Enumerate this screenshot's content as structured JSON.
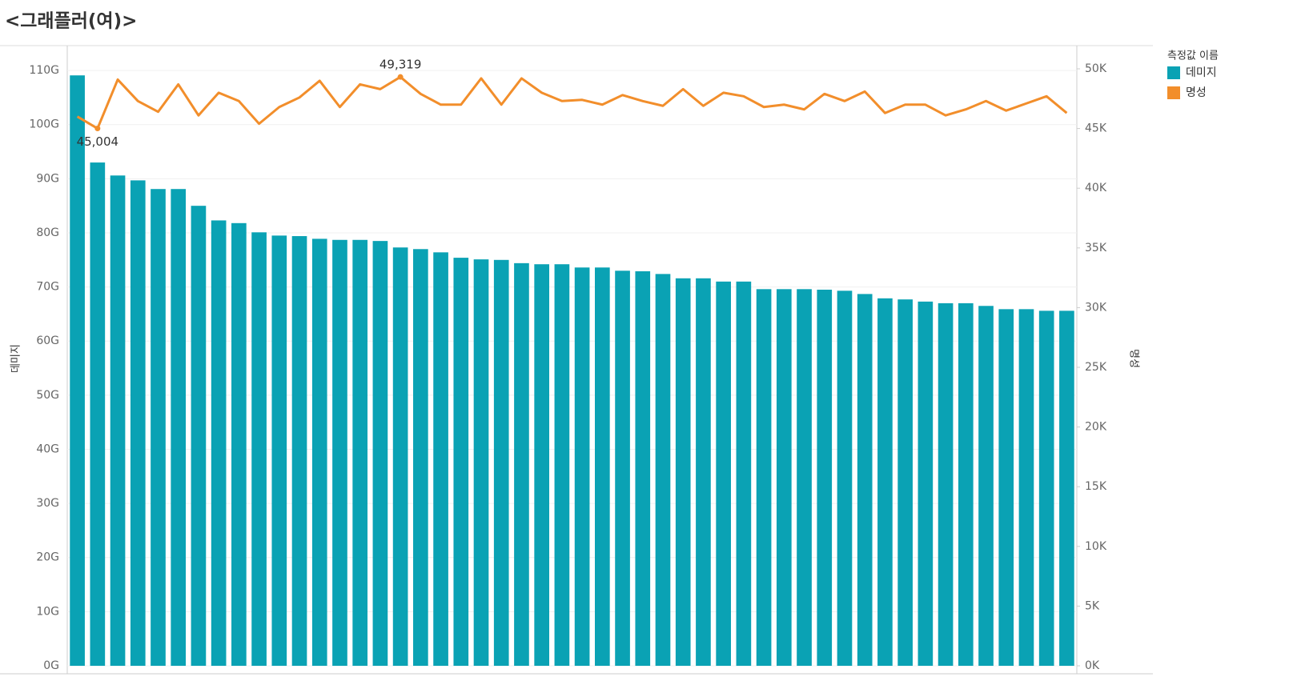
{
  "chart_data": {
    "type": "combo",
    "title": "<그래플러(여)>",
    "ylabel": "데미지",
    "y2label": "명성",
    "legend_title": "측정값 이름",
    "legend": "right",
    "grid": true,
    "categories": [
      null,
      null,
      null,
      null,
      null,
      null,
      null,
      null,
      null,
      null,
      null,
      null,
      null,
      null,
      null,
      null,
      null,
      null,
      null,
      null,
      null,
      null,
      null,
      null,
      null,
      null,
      null,
      null,
      null,
      null,
      null,
      null,
      null,
      null,
      null,
      null,
      null,
      null,
      null,
      null,
      null,
      null,
      null,
      null,
      null,
      null,
      null,
      null,
      null,
      null
    ],
    "ylim": [
      0,
      114600000000.0
    ],
    "yticks": [
      {
        "value": 0,
        "label": "0G"
      },
      {
        "value": 10000000000.0,
        "label": "10G"
      },
      {
        "value": 20000000000.0,
        "label": "20G"
      },
      {
        "value": 30000000000.0,
        "label": "30G"
      },
      {
        "value": 40000000000.0,
        "label": "40G"
      },
      {
        "value": 50000000000.0,
        "label": "50G"
      },
      {
        "value": 60000000000.0,
        "label": "60G"
      },
      {
        "value": 70000000000.0,
        "label": "70G"
      },
      {
        "value": 80000000000.0,
        "label": "80G"
      },
      {
        "value": 90000000000.0,
        "label": "90G"
      },
      {
        "value": 100000000000.0,
        "label": "100G"
      },
      {
        "value": 110000000000.0,
        "label": "110G"
      }
    ],
    "y2lim": [
      0,
      51944
    ],
    "y2ticks": [
      {
        "value": 0,
        "label": "0K"
      },
      {
        "value": 5000,
        "label": "5K"
      },
      {
        "value": 10000,
        "label": "10K"
      },
      {
        "value": 15000,
        "label": "15K"
      },
      {
        "value": 20000,
        "label": "20K"
      },
      {
        "value": 25000,
        "label": "25K"
      },
      {
        "value": 30000,
        "label": "30K"
      },
      {
        "value": 35000,
        "label": "35K"
      },
      {
        "value": 40000,
        "label": "40K"
      },
      {
        "value": 45000,
        "label": "45K"
      },
      {
        "value": 50000,
        "label": "50K"
      }
    ],
    "series": [
      {
        "name": "데미지",
        "type": "bar",
        "axis": "y",
        "color": "#0aa2b4",
        "values": [
          109100000000.0,
          93000000000.0,
          90600000000.0,
          89700000000.0,
          88100000000.0,
          88100000000.0,
          85000000000.0,
          82300000000.0,
          81800000000.0,
          80100000000.0,
          79500000000.0,
          79400000000.0,
          78900000000.0,
          78700000000.0,
          78700000000.0,
          78500000000.0,
          77300000000.0,
          77000000000.0,
          76400000000.0,
          75400000000.0,
          75100000000.0,
          75000000000.0,
          74400000000.0,
          74200000000.0,
          74200000000.0,
          73600000000.0,
          73600000000.0,
          73000000000.0,
          72900000000.0,
          72400000000.0,
          71600000000.0,
          71600000000.0,
          71000000000.0,
          71000000000.0,
          69600000000.0,
          69600000000.0,
          69600000000.0,
          69500000000.0,
          69300000000.0,
          68700000000.0,
          67900000000.0,
          67700000000.0,
          67300000000.0,
          67000000000.0,
          67000000000.0,
          66500000000.0,
          65900000000.0,
          65900000000.0,
          65600000000.0,
          65600000000.0
        ]
      },
      {
        "name": "명성",
        "type": "line",
        "axis": "y2",
        "color": "#f28e2b",
        "values": [
          46000,
          45004,
          49100,
          47300,
          46400,
          48700,
          46100,
          48000,
          47300,
          45400,
          46800,
          47600,
          49000,
          46800,
          48700,
          48300,
          49319,
          47900,
          47000,
          47000,
          49200,
          47000,
          49200,
          48000,
          47300,
          47400,
          47000,
          47800,
          47300,
          46900,
          48300,
          46900,
          48000,
          47700,
          46800,
          47000,
          46600,
          47900,
          47300,
          48100,
          46300,
          47000,
          47000,
          46100,
          46600,
          47300,
          46500,
          47100,
          47700,
          46300
        ],
        "value_labels": [
          null,
          "45,004",
          null,
          null,
          null,
          null,
          null,
          null,
          null,
          null,
          null,
          null,
          null,
          null,
          null,
          null,
          "49,319",
          null,
          null,
          null,
          null,
          null,
          null,
          null,
          null,
          null,
          null,
          null,
          null,
          null,
          null,
          null,
          null,
          null,
          null,
          null,
          null,
          null,
          null,
          null,
          null,
          null,
          null,
          null,
          null,
          null,
          null,
          null,
          null,
          null
        ]
      }
    ]
  }
}
